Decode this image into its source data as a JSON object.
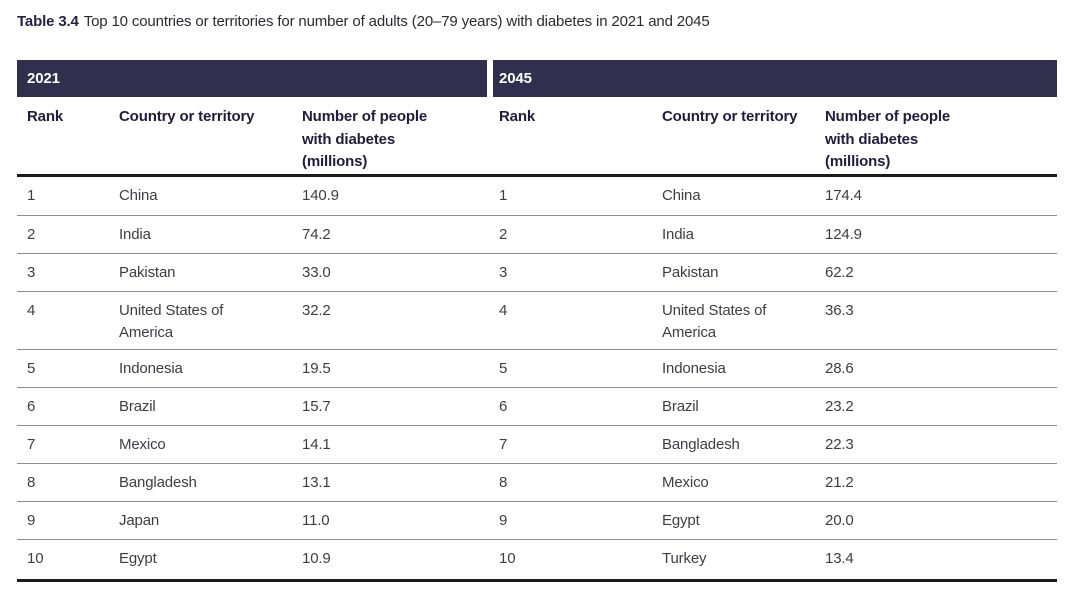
{
  "caption": {
    "label": "Table 3.4",
    "text": "Top 10 countries or territories for number of adults (20–79 years) with diabetes in 2021 and 2045"
  },
  "table": {
    "sections": [
      {
        "year": "2021",
        "columns": {
          "rank": "Rank",
          "country": "Country or territory",
          "number": "Number of people with diabetes (millions)"
        },
        "rows": [
          {
            "rank": "1",
            "country": "China",
            "value": "140.9"
          },
          {
            "rank": "2",
            "country": "India",
            "value": "74.2"
          },
          {
            "rank": "3",
            "country": "Pakistan",
            "value": "33.0"
          },
          {
            "rank": "4",
            "country": "United States of America",
            "value": "32.2"
          },
          {
            "rank": "5",
            "country": "Indonesia",
            "value": "19.5"
          },
          {
            "rank": "6",
            "country": "Brazil",
            "value": "15.7"
          },
          {
            "rank": "7",
            "country": "Mexico",
            "value": "14.1"
          },
          {
            "rank": "8",
            "country": "Bangladesh",
            "value": "13.1"
          },
          {
            "rank": "9",
            "country": "Japan",
            "value": "11.0"
          },
          {
            "rank": "10",
            "country": "Egypt",
            "value": "10.9"
          }
        ]
      },
      {
        "year": "2045",
        "columns": {
          "rank": "Rank",
          "country": "Country or territory",
          "number": "Number of people with diabetes (millions)"
        },
        "rows": [
          {
            "rank": "1",
            "country": "China",
            "value": "174.4"
          },
          {
            "rank": "2",
            "country": "India",
            "value": "124.9"
          },
          {
            "rank": "3",
            "country": "Pakistan",
            "value": "62.2"
          },
          {
            "rank": "4",
            "country": "United States of America",
            "value": "36.3"
          },
          {
            "rank": "5",
            "country": "Indonesia",
            "value": "28.6"
          },
          {
            "rank": "6",
            "country": "Brazil",
            "value": "23.2"
          },
          {
            "rank": "7",
            "country": "Bangladesh",
            "value": "22.3"
          },
          {
            "rank": "8",
            "country": "Mexico",
            "value": "21.2"
          },
          {
            "rank": "9",
            "country": "Egypt",
            "value": "20.0"
          },
          {
            "rank": "10",
            "country": "Turkey",
            "value": "13.4"
          }
        ]
      }
    ]
  },
  "colors": {
    "band_background": "#312e4e",
    "band_text": "#ffffff",
    "header_text": "#201c3e",
    "body_text": "#3e3d44",
    "thick_rule": "#1b1b1b",
    "thin_rule": "#8e8e8e",
    "page_background": "#ffffff"
  }
}
